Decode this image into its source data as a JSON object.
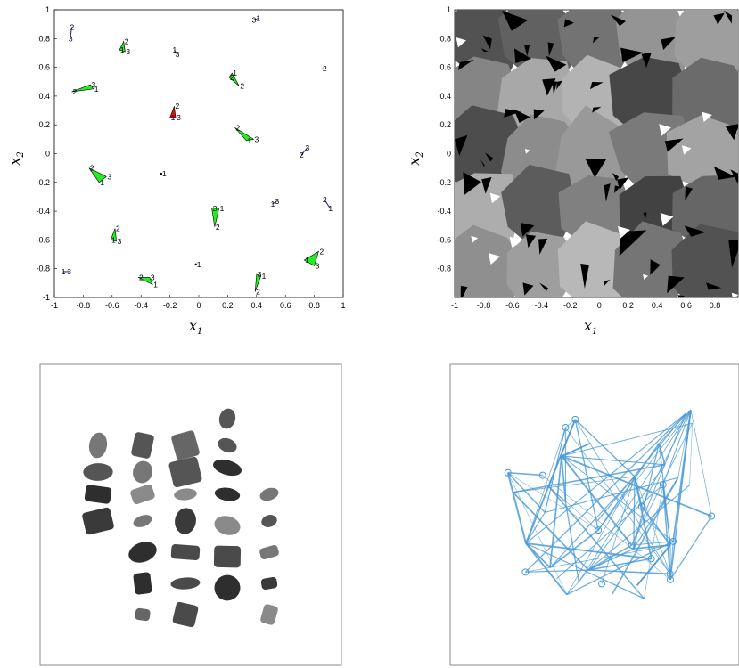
{
  "colors": {
    "triangle_green": "#22ee22",
    "triangle_red": "#dd1111",
    "segment_blue": "#1a1a9a",
    "graph_blue": "#4a9ad8"
  },
  "chart_data": [
    {
      "type": "scatter",
      "xlabel": "x",
      "xlabel_sub": "1",
      "ylabel": "x",
      "ylabel_sub": "2",
      "xlim": [
        -1,
        1
      ],
      "ylim": [
        -1,
        1
      ],
      "xticks": [
        "-1",
        "-0.8",
        "-0.6",
        "-0.4",
        "-0.2",
        "0",
        "0.2",
        "0.4",
        "0.6",
        "0.8",
        "1"
      ],
      "yticks": [
        "1",
        "0.8",
        "0.6",
        "0.4",
        "0.2",
        "0",
        "-0.2",
        "-0.4",
        "-0.6",
        "-0.8",
        "-1"
      ],
      "triangles": [
        {
          "color": "green",
          "points": [
            [
              -0.88,
              0.43
            ],
            [
              -0.75,
              0.48
            ],
            [
              -0.73,
              0.45
            ]
          ],
          "labels": [
            "2",
            "3",
            "1"
          ]
        },
        {
          "color": "green",
          "points": [
            [
              -0.52,
              0.78
            ],
            [
              -0.55,
              0.72
            ],
            [
              -0.51,
              0.71
            ]
          ],
          "labels": [
            "2",
            "1",
            "3"
          ]
        },
        {
          "color": "green",
          "points": [
            [
              0.23,
              0.56
            ],
            [
              0.21,
              0.53
            ],
            [
              0.28,
              0.47
            ]
          ],
          "labels": [
            "1",
            "2",
            "2"
          ]
        },
        {
          "color": "red",
          "points": [
            [
              -0.17,
              0.33
            ],
            [
              -0.2,
              0.25
            ],
            [
              -0.16,
              0.25
            ]
          ],
          "labels": [
            "2",
            "1",
            "3"
          ]
        },
        {
          "color": "green",
          "points": [
            [
              0.25,
              0.18
            ],
            [
              0.33,
              0.09
            ],
            [
              0.38,
              0.1
            ]
          ],
          "labels": [
            "2",
            "1",
            "3"
          ]
        },
        {
          "color": "green",
          "points": [
            [
              -0.76,
              -0.1
            ],
            [
              -0.69,
              -0.2
            ],
            [
              -0.64,
              -0.16
            ]
          ],
          "labels": [
            "2",
            "1",
            "3"
          ]
        },
        {
          "color": "green",
          "points": [
            [
              0.09,
              -0.38
            ],
            [
              0.14,
              -0.38
            ],
            [
              0.11,
              -0.51
            ]
          ],
          "labels": [
            "3",
            "1",
            "2"
          ]
        },
        {
          "color": "green",
          "points": [
            [
              -0.58,
              -0.52
            ],
            [
              -0.61,
              -0.6
            ],
            [
              -0.57,
              -0.61
            ]
          ],
          "labels": [
            "2",
            "1",
            "3"
          ]
        },
        {
          "color": "green",
          "points": [
            [
              -0.42,
              -0.86
            ],
            [
              -0.34,
              -0.86
            ],
            [
              -0.32,
              -0.91
            ]
          ],
          "labels": [
            "2",
            "3",
            "1"
          ]
        },
        {
          "color": "green",
          "points": [
            [
              0.43,
              -0.85
            ],
            [
              0.4,
              -0.84
            ],
            [
              0.39,
              -0.96
            ]
          ],
          "labels": [
            "1",
            "3",
            "2"
          ]
        },
        {
          "color": "green",
          "points": [
            [
              0.73,
              -0.74
            ],
            [
              0.83,
              -0.68
            ],
            [
              0.8,
              -0.78
            ]
          ],
          "labels": [
            "1",
            "2",
            "3"
          ]
        }
      ],
      "segments": [
        {
          "points": [
            [
              -0.88,
              0.88
            ],
            [
              -0.89,
              0.8
            ]
          ],
          "labels": [
            "2",
            "3"
          ]
        },
        {
          "points": [
            [
              0.38,
              0.93
            ],
            [
              0.41,
              0.94
            ]
          ],
          "labels": [
            "3",
            "1"
          ]
        },
        {
          "points": [
            [
              -0.17,
              0.72
            ],
            [
              -0.15,
              0.69
            ]
          ],
          "labels": [
            "1",
            "3"
          ]
        },
        {
          "points": [
            [
              0.85,
              0.59
            ],
            [
              0.87,
              0.59
            ]
          ],
          "labels": [
            "",
            "2"
          ]
        },
        {
          "points": [
            [
              0.71,
              -0.01
            ],
            [
              0.75,
              0.04
            ]
          ],
          "labels": [
            "2",
            "3"
          ]
        },
        {
          "points": [
            [
              0.51,
              -0.35
            ],
            [
              0.54,
              -0.33
            ]
          ],
          "labels": [
            "1",
            "3"
          ]
        },
        {
          "points": [
            [
              0.87,
              -0.32
            ],
            [
              0.91,
              -0.38
            ]
          ],
          "labels": [
            "2",
            "1"
          ]
        },
        {
          "points": [
            [
              -0.94,
              -0.82
            ],
            [
              -0.9,
              -0.82
            ]
          ],
          "labels": [
            "1",
            "3"
          ]
        }
      ],
      "points": [
        {
          "point": [
            -0.26,
            -0.14
          ],
          "label": "1"
        },
        {
          "point": [
            -0.02,
            -0.77
          ],
          "label": "1"
        }
      ]
    },
    {
      "type": "heatmap",
      "xlabel": "x",
      "xlabel_sub": "1",
      "ylabel": "x",
      "ylabel_sub": "2",
      "xlim": [
        -1,
        1
      ],
      "ylim": [
        -1,
        1
      ],
      "xticks": [
        "-1",
        "-0.8",
        "-0.6",
        "-0.4",
        "-0.2",
        "0",
        "0.2",
        "0.4",
        "0.6",
        "0.8"
      ],
      "yticks": [
        "1",
        "0.8",
        "0.6",
        "0.4",
        "0.2",
        "0",
        "-0.2",
        "-0.4",
        "-0.6",
        "-0.8"
      ],
      "region_gray_levels": [
        0.32,
        0.38,
        0.45,
        0.58,
        0.62,
        0.52,
        0.66,
        0.7,
        0.28,
        0.42,
        0.3,
        0.55,
        0.6,
        0.48,
        0.64,
        0.68,
        0.36,
        0.5,
        0.26,
        0.4,
        0.56,
        0.62,
        0.72,
        0.46
      ]
    }
  ]
}
